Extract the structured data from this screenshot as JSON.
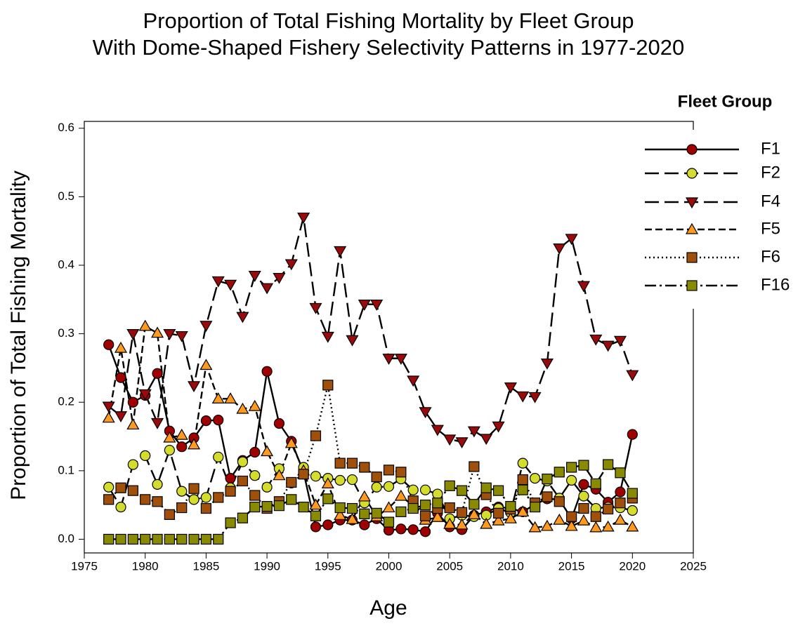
{
  "chart_data": {
    "type": "line",
    "title": "Proportion of Total Fishing Mortality by Fleet Group",
    "subtitle": "With Dome-Shaped Fishery Selectivity Patterns in 1977-2020",
    "xlabel": "Age",
    "ylabel": "Proportion of Total Fishing Mortality",
    "legend_title": "Fleet Group",
    "legend": "upper right",
    "x": [
      1977,
      1978,
      1979,
      1980,
      1981,
      1982,
      1983,
      1984,
      1985,
      1986,
      1987,
      1988,
      1989,
      1990,
      1991,
      1992,
      1993,
      1994,
      1995,
      1996,
      1997,
      1998,
      1999,
      2000,
      2001,
      2002,
      2003,
      2004,
      2005,
      2006,
      2007,
      2008,
      2009,
      2010,
      2011,
      2012,
      2013,
      2014,
      2015,
      2016,
      2017,
      2018,
      2019,
      2020
    ],
    "xlim": [
      1975,
      2025
    ],
    "xticks": [
      1975,
      1980,
      1985,
      1990,
      1995,
      2000,
      2005,
      2010,
      2015,
      2020,
      2025
    ],
    "ylim": [
      -0.02,
      0.61
    ],
    "yticks": [
      {
        "value": 0,
        "label": "0.0"
      },
      0.1,
      0.2,
      0.3,
      0.4,
      0.5,
      0.6
    ],
    "series": [
      {
        "name": "F1",
        "color": "#a00000",
        "marker": "circle",
        "dash": "solid",
        "values": [
          0.284,
          0.236,
          0.2,
          0.21,
          0.242,
          0.158,
          0.135,
          0.148,
          0.173,
          0.174,
          0.089,
          0.115,
          0.127,
          0.245,
          0.169,
          0.143,
          0.098,
          0.018,
          0.021,
          0.028,
          0.028,
          0.021,
          0.03,
          0.013,
          0.015,
          0.014,
          0.011,
          0.038,
          0.018,
          0.014,
          0.035,
          0.04,
          0.047,
          0.045,
          0.04,
          0.051,
          0.059,
          0.058,
          0.03,
          0.08,
          0.073,
          0.054,
          0.069,
          0.153
        ]
      },
      {
        "name": "F2",
        "color": "#d4dc2c",
        "marker": "circle",
        "dash": "long",
        "values": [
          0.076,
          0.047,
          0.109,
          0.122,
          0.08,
          0.13,
          0.07,
          0.058,
          0.061,
          0.12,
          0.075,
          0.113,
          0.093,
          0.076,
          0.103,
          0.082,
          0.105,
          0.092,
          0.089,
          0.086,
          0.087,
          0.053,
          0.076,
          0.077,
          0.088,
          0.072,
          0.072,
          0.066,
          0.03,
          0.035,
          0.033,
          0.035,
          0.045,
          0.039,
          0.111,
          0.089,
          0.085,
          0.06,
          0.086,
          0.063,
          0.045,
          0.047,
          0.046,
          0.042
        ]
      },
      {
        "name": "F4",
        "color": "#9b0a0a",
        "marker": "triangle-down",
        "dash": "long",
        "values": [
          0.194,
          0.18,
          0.3,
          0.212,
          0.17,
          0.3,
          0.297,
          0.224,
          0.312,
          0.377,
          0.372,
          0.325,
          0.385,
          0.367,
          0.382,
          0.402,
          0.47,
          0.338,
          0.296,
          0.421,
          0.291,
          0.343,
          0.343,
          0.264,
          0.264,
          0.232,
          0.186,
          0.16,
          0.146,
          0.142,
          0.158,
          0.147,
          0.165,
          0.222,
          0.209,
          0.208,
          0.257,
          0.425,
          0.439,
          0.37,
          0.292,
          0.283,
          0.29,
          0.24
        ]
      },
      {
        "name": "F5",
        "color": "#ff9a1e",
        "marker": "triangle",
        "dash": "short",
        "values": [
          0.177,
          0.279,
          0.167,
          0.311,
          0.301,
          0.148,
          0.152,
          0.138,
          0.254,
          0.205,
          0.205,
          0.19,
          0.194,
          0.128,
          0.093,
          0.14,
          0.1,
          0.05,
          0.081,
          0.035,
          0.029,
          0.062,
          0.033,
          0.046,
          0.063,
          0.049,
          0.028,
          0.032,
          0.022,
          0.021,
          0.036,
          0.022,
          0.027,
          0.03,
          0.04,
          0.017,
          0.019,
          0.028,
          0.019,
          0.027,
          0.017,
          0.018,
          0.028,
          0.018
        ]
      },
      {
        "name": "F6",
        "color": "#a0500a",
        "marker": "square",
        "dash": "dotted",
        "values": [
          0.058,
          0.075,
          0.071,
          0.058,
          0.055,
          0.036,
          0.046,
          0.074,
          0.045,
          0.061,
          0.07,
          0.085,
          0.064,
          0.045,
          0.055,
          0.083,
          0.095,
          0.151,
          0.225,
          0.111,
          0.111,
          0.105,
          0.091,
          0.101,
          0.098,
          0.056,
          0.034,
          0.045,
          0.046,
          0.039,
          0.106,
          0.065,
          0.038,
          0.044,
          0.087,
          0.053,
          0.062,
          0.055,
          0.033,
          0.045,
          0.033,
          0.044,
          0.053,
          0.06
        ]
      },
      {
        "name": "F16",
        "color": "#8a8a00",
        "marker": "square",
        "dash": "dashdot",
        "values": [
          0,
          0,
          0,
          0,
          0,
          0,
          0,
          0,
          0,
          0,
          0.024,
          0.031,
          0.047,
          0.048,
          0.049,
          0.058,
          0.047,
          0.034,
          0.059,
          0.046,
          0.045,
          0.037,
          0.038,
          0.025,
          0.04,
          0.045,
          0.05,
          0.053,
          0.078,
          0.071,
          0.051,
          0.075,
          0.071,
          0.048,
          0.072,
          0.047,
          0.088,
          0.098,
          0.105,
          0.108,
          0.081,
          0.109,
          0.097,
          0.067
        ]
      }
    ]
  }
}
